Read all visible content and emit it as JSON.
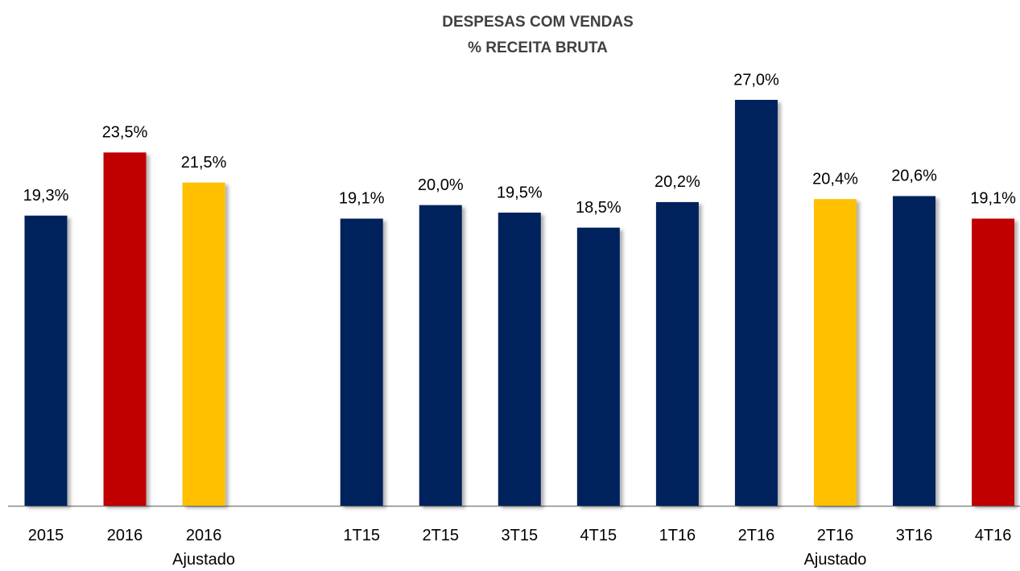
{
  "chart_data": {
    "type": "bar",
    "title": "DESPESAS COM VENDAS",
    "subtitle": "% RECEITA BRUTA",
    "categories": [
      "2015",
      "2016",
      "2016\nAjustado",
      null,
      "1T15",
      "2T15",
      "3T15",
      "4T15",
      "1T16",
      "2T16",
      "2T16\nAjustado",
      "3T16",
      "4T16"
    ],
    "values": [
      19.3,
      23.5,
      21.5,
      null,
      19.1,
      20.0,
      19.5,
      18.5,
      20.2,
      27.0,
      20.4,
      20.6,
      19.1
    ],
    "value_labels": [
      "19,3%",
      "23,5%",
      "21,5%",
      null,
      "19,1%",
      "20,0%",
      "19,5%",
      "18,5%",
      "20,2%",
      "27,0%",
      "20,4%",
      "20,6%",
      "19,1%"
    ],
    "colors": [
      "#00205b",
      "#c00000",
      "#ffc000",
      null,
      "#00205b",
      "#00205b",
      "#00205b",
      "#00205b",
      "#00205b",
      "#00205b",
      "#ffc000",
      "#00205b",
      "#c00000"
    ],
    "ylim": [
      0,
      30
    ]
  }
}
